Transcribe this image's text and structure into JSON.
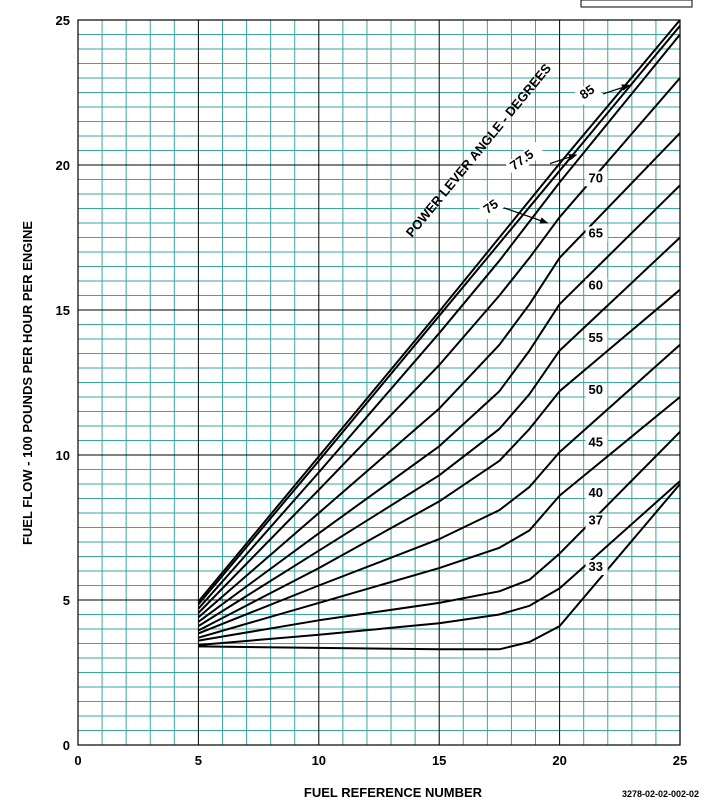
{
  "chart_data": {
    "type": "line",
    "title": "",
    "xlabel": "FUEL REFERENCE NUMBER",
    "ylabel": "FUEL FLOW - 100 POUNDS PER HOUR PER ENGINE",
    "xlim": [
      0,
      25
    ],
    "ylim": [
      0,
      25
    ],
    "x_ticks": [
      "0",
      "5",
      "10",
      "15",
      "20",
      "25"
    ],
    "y_ticks": [
      "0",
      "5",
      "10",
      "15",
      "20",
      "25"
    ],
    "grid": true,
    "parameter_title": "POWER LEVER ANGLE - DEGREES",
    "figure_id": "3278-02-02-002-02",
    "colors": {
      "grid": "#3aa6a0",
      "major_grid": "#000000",
      "curves": "#000000"
    },
    "series": [
      {
        "name": "85",
        "points": [
          [
            5,
            4.95
          ],
          [
            10,
            9.95
          ],
          [
            15,
            14.95
          ],
          [
            20,
            20.05
          ],
          [
            25,
            25.0
          ]
        ]
      },
      {
        "name": "77.5",
        "points": [
          [
            5,
            4.85
          ],
          [
            10,
            9.8
          ],
          [
            15,
            14.8
          ],
          [
            20,
            19.8
          ],
          [
            25,
            24.8
          ]
        ]
      },
      {
        "name": "75",
        "points": [
          [
            5,
            4.7
          ],
          [
            10,
            9.4
          ],
          [
            15,
            14.2
          ],
          [
            17.5,
            16.7
          ],
          [
            20,
            19.4
          ],
          [
            25,
            24.5
          ]
        ]
      },
      {
        "name": "70",
        "points": [
          [
            5,
            4.55
          ],
          [
            10,
            8.8
          ],
          [
            15,
            13.1
          ],
          [
            17.5,
            15.5
          ],
          [
            18.75,
            16.8
          ],
          [
            20,
            18.2
          ],
          [
            25,
            23.0
          ]
        ]
      },
      {
        "name": "65",
        "points": [
          [
            5,
            4.4
          ],
          [
            10,
            8.0
          ],
          [
            15,
            11.6
          ],
          [
            17.5,
            13.8
          ],
          [
            18.75,
            15.2
          ],
          [
            20,
            16.8
          ],
          [
            25,
            21.1
          ]
        ]
      },
      {
        "name": "60",
        "points": [
          [
            5,
            4.25
          ],
          [
            10,
            7.3
          ],
          [
            15,
            10.3
          ],
          [
            17.5,
            12.2
          ],
          [
            18.75,
            13.6
          ],
          [
            20,
            15.2
          ],
          [
            25,
            19.3
          ]
        ]
      },
      {
        "name": "55",
        "points": [
          [
            5,
            4.1
          ],
          [
            10,
            6.7
          ],
          [
            15,
            9.3
          ],
          [
            17.5,
            10.9
          ],
          [
            18.75,
            12.1
          ],
          [
            20,
            13.6
          ],
          [
            25,
            17.5
          ]
        ]
      },
      {
        "name": "50",
        "points": [
          [
            5,
            3.95
          ],
          [
            10,
            6.1
          ],
          [
            15,
            8.4
          ],
          [
            17.5,
            9.8
          ],
          [
            18.75,
            10.9
          ],
          [
            20,
            12.2
          ],
          [
            25,
            15.7
          ]
        ]
      },
      {
        "name": "45",
        "points": [
          [
            5,
            3.85
          ],
          [
            10,
            5.5
          ],
          [
            15,
            7.1
          ],
          [
            17.5,
            8.1
          ],
          [
            18.75,
            8.9
          ],
          [
            20,
            10.1
          ],
          [
            25,
            13.8
          ]
        ]
      },
      {
        "name": "40",
        "points": [
          [
            5,
            3.7
          ],
          [
            10,
            4.9
          ],
          [
            15,
            6.1
          ],
          [
            17.5,
            6.8
          ],
          [
            18.75,
            7.4
          ],
          [
            20,
            8.6
          ],
          [
            25,
            12.0
          ]
        ]
      },
      {
        "name": "37",
        "points": [
          [
            5,
            3.6
          ],
          [
            10,
            4.3
          ],
          [
            15,
            4.9
          ],
          [
            17.5,
            5.3
          ],
          [
            18.75,
            5.7
          ],
          [
            20,
            6.6
          ],
          [
            25,
            10.8
          ]
        ]
      },
      {
        "name": "33",
        "points": [
          [
            5,
            3.45
          ],
          [
            10,
            3.8
          ],
          [
            15,
            4.2
          ],
          [
            17.5,
            4.5
          ],
          [
            18.75,
            4.8
          ],
          [
            20,
            5.4
          ],
          [
            25,
            9.1
          ]
        ]
      },
      {
        "name": "",
        "points": [
          [
            5,
            3.4
          ],
          [
            10,
            3.35
          ],
          [
            15,
            3.3
          ],
          [
            17.5,
            3.3
          ],
          [
            18.75,
            3.55
          ],
          [
            20,
            4.1
          ],
          [
            25,
            9.0
          ]
        ]
      }
    ],
    "labels": [
      {
        "text": "85",
        "x": 21.0,
        "y": 22.25
      },
      {
        "text": "77.5",
        "x": 18.1,
        "y": 19.8
      },
      {
        "text": "75",
        "x": 17.0,
        "y": 18.3
      },
      {
        "text": "70",
        "x": 21.2,
        "y": 19.4
      },
      {
        "text": "65",
        "x": 21.2,
        "y": 17.5
      },
      {
        "text": "60",
        "x": 21.2,
        "y": 15.7
      },
      {
        "text": "55",
        "x": 21.2,
        "y": 13.9
      },
      {
        "text": "50",
        "x": 21.2,
        "y": 12.1
      },
      {
        "text": "45",
        "x": 21.2,
        "y": 10.3
      },
      {
        "text": "40",
        "x": 21.2,
        "y": 8.55
      },
      {
        "text": "37",
        "x": 21.2,
        "y": 7.6
      },
      {
        "text": "33",
        "x": 21.2,
        "y": 6.0
      }
    ]
  }
}
